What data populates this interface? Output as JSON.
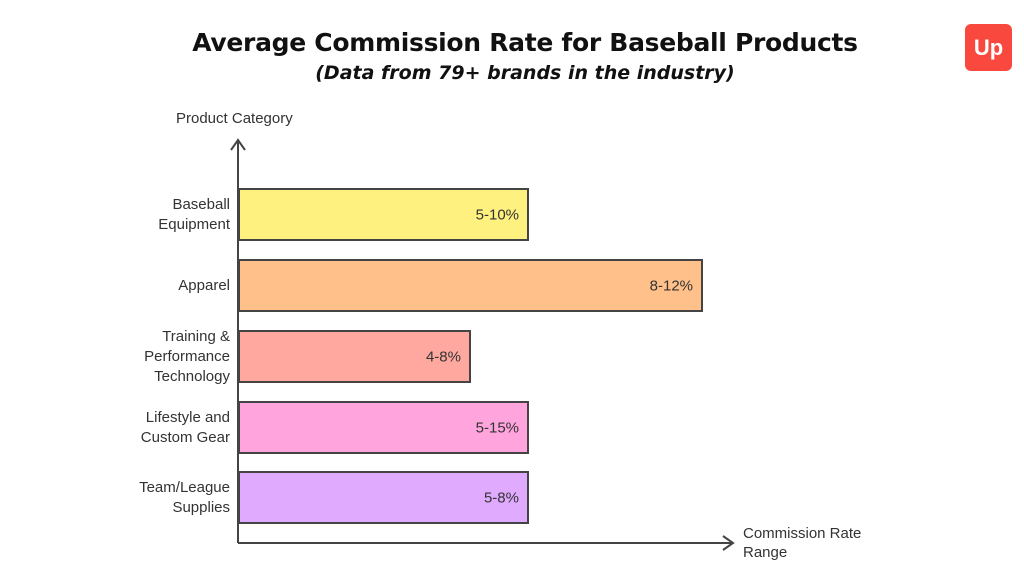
{
  "title": "Average Commission Rate for Baseball Products",
  "subtitle": "(Data from 79+ brands in the industry)",
  "logo": {
    "icon": "up-logo-icon",
    "color": "#F9493E"
  },
  "chart_data": {
    "type": "bar",
    "orientation": "horizontal",
    "ylabel": "Product Category",
    "xlabel": "Commission Rate Range",
    "categories": [
      "Baseball Equipment",
      "Apparel",
      "Training & Performance Technology",
      "Lifestyle and Custom Gear",
      "Team/League Supplies"
    ],
    "values": [
      "5-10%",
      "8-12%",
      "4-8%",
      "5-15%",
      "5-8%"
    ],
    "colors": [
      "#FFF17F",
      "#FFC08A",
      "#FFA8A0",
      "#FFA4DC",
      "#E0AAFF"
    ],
    "grid": false
  }
}
